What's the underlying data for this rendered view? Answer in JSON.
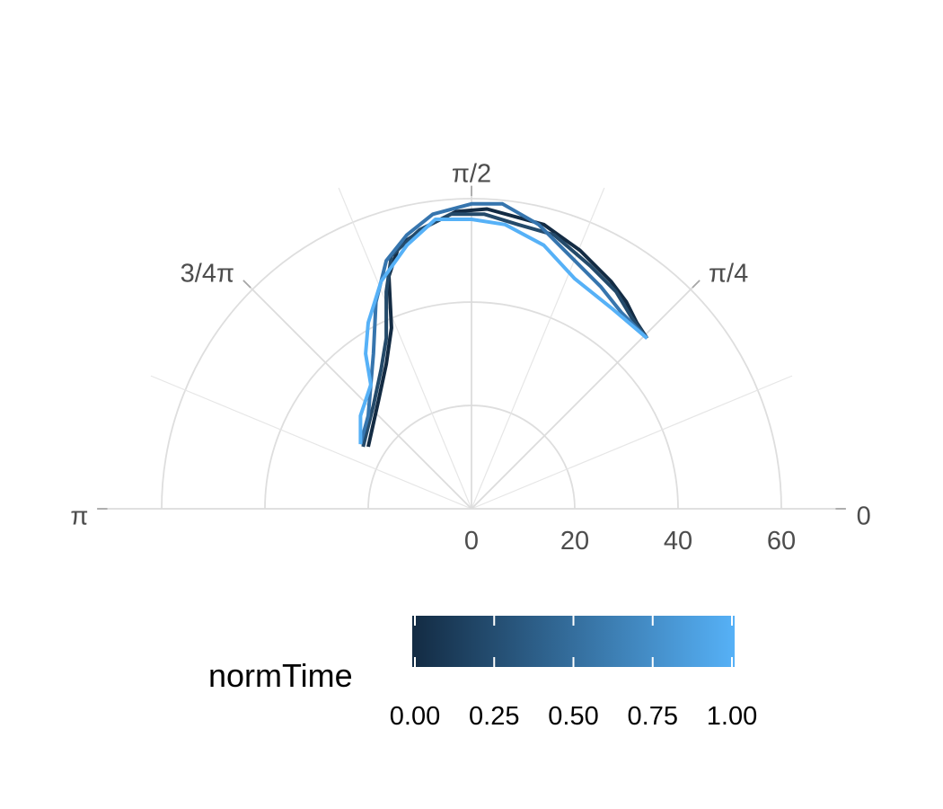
{
  "chart_data": {
    "type": "line",
    "coordinate_system": "polar-half",
    "theta_axis": {
      "range": [
        0,
        3.14159265
      ],
      "ticks": [
        {
          "value": 0,
          "label": "0"
        },
        {
          "value": 0.785398,
          "label": "π/4"
        },
        {
          "value": 1.570796,
          "label": "π/2"
        },
        {
          "value": 2.356194,
          "label": "3/4π"
        },
        {
          "value": 3.141593,
          "label": "π"
        }
      ],
      "minor_gridlines": [
        0.392699,
        1.178097,
        1.963495,
        2.748894
      ]
    },
    "r_axis": {
      "range": [
        0,
        60
      ],
      "ticks": [
        {
          "value": 0,
          "label": "0"
        },
        {
          "value": 20,
          "label": "20"
        },
        {
          "value": 40,
          "label": "40"
        },
        {
          "value": 60,
          "label": "60"
        }
      ],
      "grid": true
    },
    "legend": {
      "title": "normTime",
      "position": "bottom",
      "colors": [
        "#132B43",
        "#56B1F7"
      ],
      "ticks": [
        {
          "value": 0.0,
          "label": "0.00"
        },
        {
          "value": 0.25,
          "label": "0.25"
        },
        {
          "value": 0.5,
          "label": "0.50"
        },
        {
          "value": 0.75,
          "label": "0.75"
        },
        {
          "value": 1.0,
          "label": "1.00"
        }
      ]
    },
    "series": [
      {
        "normTime": 0.0,
        "color": "#132B43",
        "points": [
          {
            "x": 34.0,
            "y": 33.0
          },
          {
            "x": 32.0,
            "y": 36.0
          },
          {
            "x": 30.0,
            "y": 40.0
          },
          {
            "x": 27.0,
            "y": 44.0
          },
          {
            "x": 21.0,
            "y": 50.0
          },
          {
            "x": 14.0,
            "y": 55.0
          },
          {
            "x": 3.0,
            "y": 58.0
          },
          {
            "x": -3.0,
            "y": 57.5
          },
          {
            "x": -8.0,
            "y": 55.0
          },
          {
            "x": -14.0,
            "y": 51.0
          },
          {
            "x": -16.0,
            "y": 45.0
          },
          {
            "x": -15.5,
            "y": 35.0
          },
          {
            "x": -16.5,
            "y": 28.0
          },
          {
            "x": -18.0,
            "y": 21.0
          },
          {
            "x": -20.0,
            "y": 12.0
          }
        ]
      },
      {
        "normTime": 0.33,
        "color": "#244A6A",
        "points": [
          {
            "x": 34.0,
            "y": 33.0
          },
          {
            "x": 31.0,
            "y": 37.0
          },
          {
            "x": 28.0,
            "y": 42.0
          },
          {
            "x": 23.0,
            "y": 47.0
          },
          {
            "x": 16.0,
            "y": 53.0
          },
          {
            "x": 9.0,
            "y": 55.0
          },
          {
            "x": 2.5,
            "y": 57.0
          },
          {
            "x": -4.0,
            "y": 57.0
          },
          {
            "x": -10.0,
            "y": 54.0
          },
          {
            "x": -15.5,
            "y": 49.0
          },
          {
            "x": -16.5,
            "y": 42.0
          },
          {
            "x": -16.5,
            "y": 33.0
          },
          {
            "x": -17.5,
            "y": 27.0
          },
          {
            "x": -19.0,
            "y": 20.0
          },
          {
            "x": -21.0,
            "y": 12.0
          }
        ]
      },
      {
        "normTime": 0.67,
        "color": "#3675AE",
        "points": [
          {
            "x": 34.0,
            "y": 33.0
          },
          {
            "x": 29.0,
            "y": 38.0
          },
          {
            "x": 25.0,
            "y": 43.0
          },
          {
            "x": 19.0,
            "y": 49.0
          },
          {
            "x": 13.0,
            "y": 55.0
          },
          {
            "x": 6.0,
            "y": 59.0
          },
          {
            "x": 0.0,
            "y": 59.0
          },
          {
            "x": -7.5,
            "y": 57.0
          },
          {
            "x": -12.5,
            "y": 53.0
          },
          {
            "x": -16.5,
            "y": 48.0
          },
          {
            "x": -18.5,
            "y": 40.0
          },
          {
            "x": -19.0,
            "y": 30.0
          },
          {
            "x": -19.5,
            "y": 24.0
          },
          {
            "x": -20.0,
            "y": 18.0
          },
          {
            "x": -21.5,
            "y": 12.5
          }
        ]
      },
      {
        "normTime": 1.0,
        "color": "#56B1F7",
        "points": [
          {
            "x": 34.0,
            "y": 33.0
          },
          {
            "x": 27.5,
            "y": 38.5
          },
          {
            "x": 20.0,
            "y": 44.5
          },
          {
            "x": 14.0,
            "y": 51.0
          },
          {
            "x": 6.5,
            "y": 55.0
          },
          {
            "x": 0.0,
            "y": 56.0
          },
          {
            "x": -7.0,
            "y": 56.0
          },
          {
            "x": -12.5,
            "y": 51.0
          },
          {
            "x": -17.5,
            "y": 44.0
          },
          {
            "x": -20.0,
            "y": 36.0
          },
          {
            "x": -20.5,
            "y": 30.0
          },
          {
            "x": -19.5,
            "y": 24.0
          },
          {
            "x": -21.5,
            "y": 18.0
          },
          {
            "x": -21.5,
            "y": 12.5
          }
        ]
      }
    ]
  }
}
